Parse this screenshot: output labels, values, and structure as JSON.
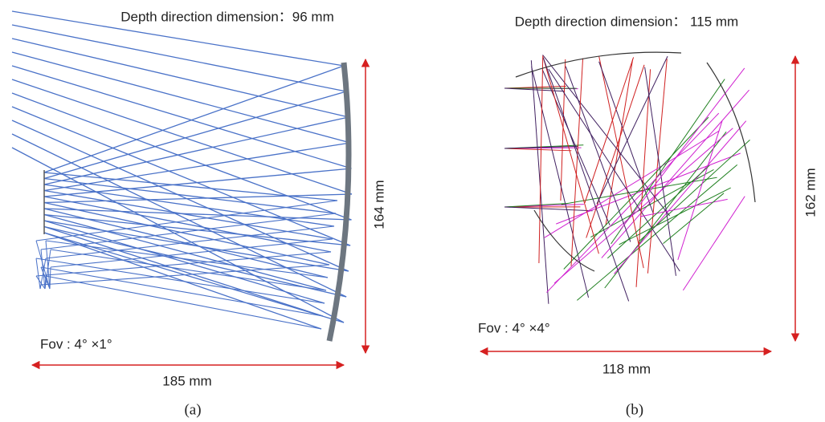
{
  "panels": [
    {
      "title": "Depth direction dimension：96 mm",
      "height_label": "164 mm",
      "width_label": "185 mm",
      "fov": "Fov : 4°  ×1°",
      "caption": "(a)"
    },
    {
      "title": "Depth direction dimension：  115 mm",
      "height_label": "162 mm",
      "width_label": "118 mm",
      "fov": "Fov : 4°  ×4°",
      "caption": "(b)"
    }
  ]
}
